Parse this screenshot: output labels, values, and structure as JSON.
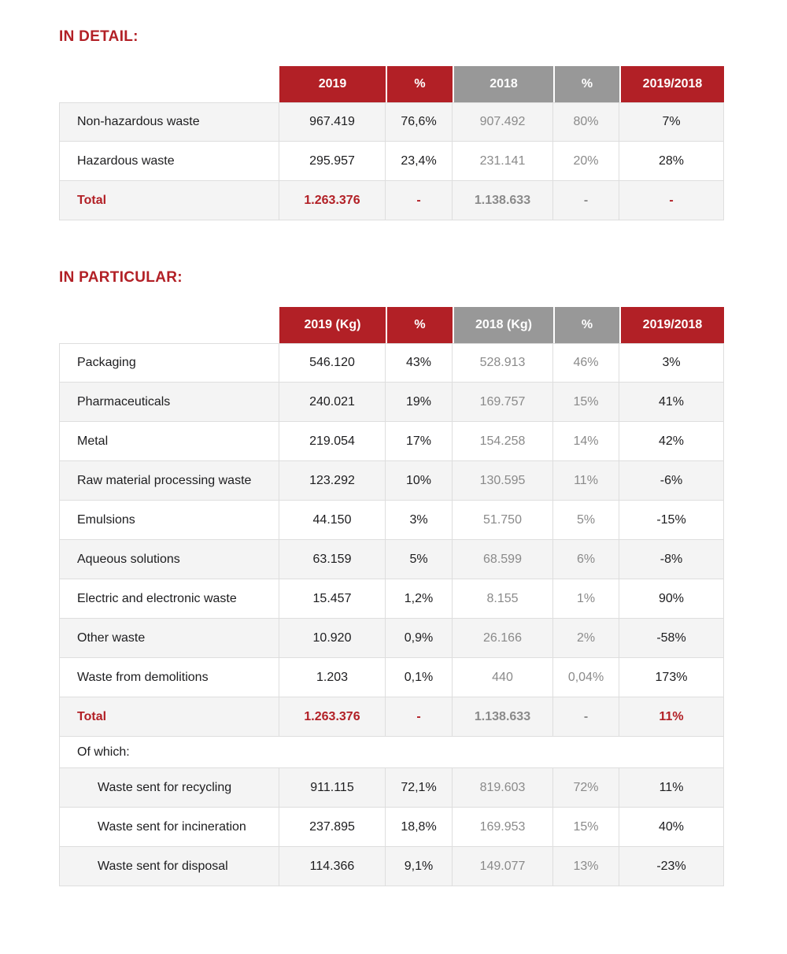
{
  "colors": {
    "accent_red": "#b22026",
    "header_gray": "#989898",
    "muted_text": "#8a8a8a",
    "row_shade": "#f4f4f4",
    "border": "#dedede"
  },
  "sections": [
    {
      "title": "IN DETAIL:",
      "columns": [
        {
          "key": "row-header",
          "label": "",
          "style": "none"
        },
        {
          "key": "2019",
          "label": "2019",
          "style": "red"
        },
        {
          "key": "pct-2019",
          "label": "%",
          "style": "red"
        },
        {
          "key": "2018",
          "label": "2018",
          "style": "gray"
        },
        {
          "key": "pct-2018",
          "label": "%",
          "style": "gray"
        },
        {
          "key": "2019-2018",
          "label": "2019/2018",
          "style": "red"
        }
      ],
      "rows": [
        {
          "type": "data",
          "shaded": true,
          "cells": [
            "Non-hazardous waste",
            "967.419",
            "76,6%",
            "907.492",
            "80%",
            "7%"
          ]
        },
        {
          "type": "data",
          "shaded": false,
          "cells": [
            "Hazardous waste",
            "295.957",
            "23,4%",
            "231.141",
            "20%",
            "28%"
          ]
        },
        {
          "type": "total",
          "shaded": true,
          "cells": [
            "Total",
            "1.263.376",
            "-",
            "1.138.633",
            "-",
            "-"
          ]
        }
      ]
    },
    {
      "title": "IN PARTICULAR:",
      "columns": [
        {
          "key": "row-header",
          "label": "",
          "style": "none"
        },
        {
          "key": "2019-kg",
          "label": "2019 (Kg)",
          "style": "red"
        },
        {
          "key": "pct-2019",
          "label": "%",
          "style": "red"
        },
        {
          "key": "2018-kg",
          "label": "2018 (Kg)",
          "style": "gray"
        },
        {
          "key": "pct-2018",
          "label": "%",
          "style": "gray"
        },
        {
          "key": "2019-2018",
          "label": "2019/2018",
          "style": "red"
        }
      ],
      "rows": [
        {
          "type": "data",
          "shaded": false,
          "cells": [
            "Packaging",
            "546.120",
            "43%",
            "528.913",
            "46%",
            "3%"
          ]
        },
        {
          "type": "data",
          "shaded": true,
          "cells": [
            "Pharmaceuticals",
            "240.021",
            "19%",
            "169.757",
            "15%",
            "41%"
          ]
        },
        {
          "type": "data",
          "shaded": false,
          "cells": [
            "Metal",
            "219.054",
            "17%",
            "154.258",
            "14%",
            "42%"
          ]
        },
        {
          "type": "data",
          "shaded": true,
          "cells": [
            "Raw material processing waste",
            "123.292",
            "10%",
            "130.595",
            "11%",
            "-6%"
          ]
        },
        {
          "type": "data",
          "shaded": false,
          "cells": [
            "Emulsions",
            "44.150",
            "3%",
            "51.750",
            "5%",
            "-15%"
          ]
        },
        {
          "type": "data",
          "shaded": true,
          "cells": [
            "Aqueous solutions",
            "63.159",
            "5%",
            "68.599",
            "6%",
            "-8%"
          ]
        },
        {
          "type": "data",
          "shaded": false,
          "cells": [
            "Electric and electronic waste",
            "15.457",
            "1,2%",
            "8.155",
            "1%",
            "90%"
          ]
        },
        {
          "type": "data",
          "shaded": true,
          "cells": [
            "Other waste",
            "10.920",
            "0,9%",
            "26.166",
            "2%",
            "-58%"
          ]
        },
        {
          "type": "data",
          "shaded": false,
          "cells": [
            "Waste from demolitions",
            "1.203",
            "0,1%",
            "440",
            "0,04%",
            "173%"
          ]
        },
        {
          "type": "total",
          "shaded": true,
          "cells": [
            "Total",
            "1.263.376",
            "-",
            "1.138.633",
            "-",
            "11%"
          ]
        },
        {
          "type": "section",
          "shaded": false,
          "cells": [
            "Of which:",
            "",
            "",
            "",
            "",
            ""
          ]
        },
        {
          "type": "sub",
          "shaded": true,
          "cells": [
            "Waste sent for recycling",
            "911.115",
            "72,1%",
            "819.603",
            "72%",
            "11%"
          ]
        },
        {
          "type": "sub",
          "shaded": false,
          "cells": [
            "Waste sent for incineration",
            "237.895",
            "18,8%",
            "169.953",
            "15%",
            "40%"
          ]
        },
        {
          "type": "sub",
          "shaded": true,
          "cells": [
            "Waste sent for disposal",
            "114.366",
            "9,1%",
            "149.077",
            "13%",
            "-23%"
          ]
        }
      ]
    }
  ]
}
